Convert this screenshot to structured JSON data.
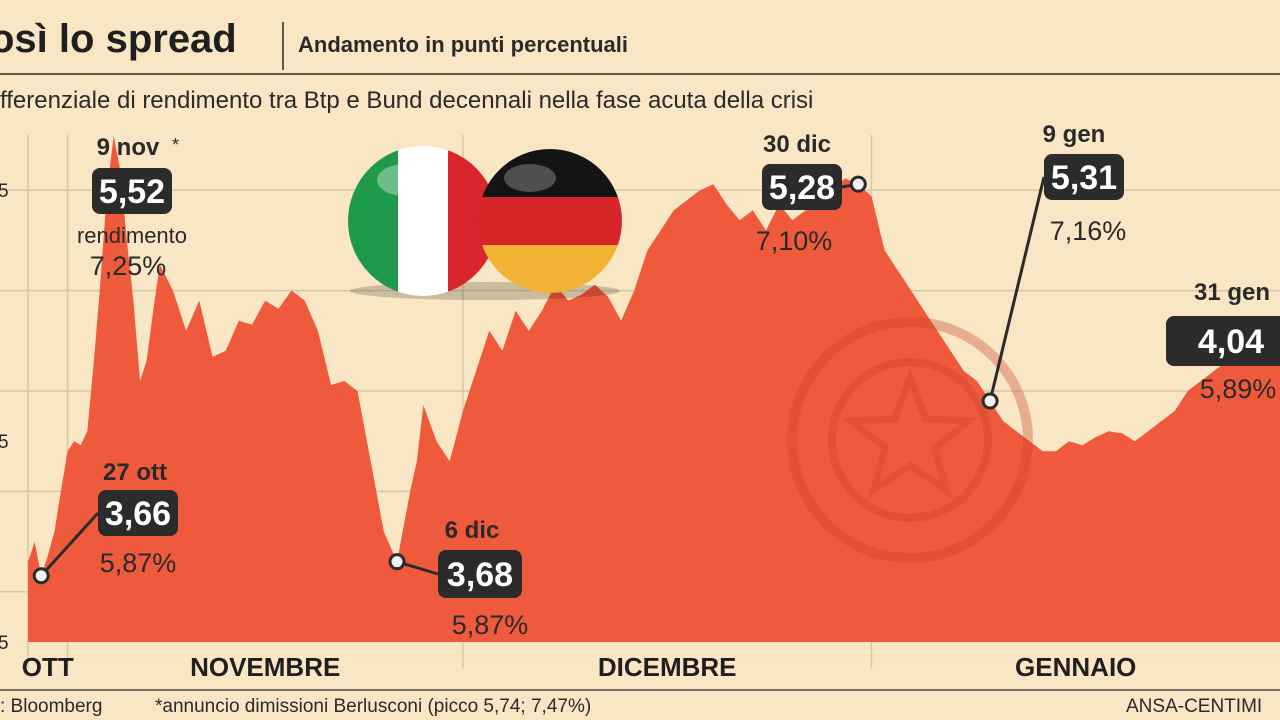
{
  "header": {
    "title": "osì lo spread",
    "subtitle": "Andamento in punti percentuali",
    "description": "fferenziale di rendimento tra Btp e Bund decennali nella fase acuta della crisi"
  },
  "footer": {
    "source": ": Bloomberg",
    "note": "*annuncio dimissioni Berlusconi (picco 5,74; 7,47%)",
    "credit": "ANSA-CENTIMI"
  },
  "colors": {
    "background": "#f8e6c4",
    "area": "#ef5a3c",
    "grid": "#d9c7a4",
    "callout": "#2b2b2b",
    "italy_green": "#1f9a4a",
    "italy_red": "#d8262c",
    "germany_black": "#141414",
    "germany_red": "#d7262a",
    "germany_gold": "#f2b233"
  },
  "chart_data": {
    "type": "area",
    "title": "osì lo spread",
    "ylabel": "",
    "ylim": [
      3.0,
      5.5
    ],
    "ytick_labels": [
      "5",
      "5",
      "5"
    ],
    "months": [
      {
        "label": "OTT",
        "day_start": 0,
        "day_end": 3
      },
      {
        "label": "NOVEMBRE",
        "day_start": 3,
        "day_end": 33
      },
      {
        "label": "DICEMBRE",
        "day_start": 33,
        "day_end": 64
      },
      {
        "label": "GENNAIO",
        "day_start": 64,
        "day_end": 95
      }
    ],
    "x": [
      0,
      0.5,
      1,
      1.5,
      2,
      2.5,
      3,
      3.5,
      4,
      4.5,
      5,
      5.5,
      6,
      6.5,
      7,
      7.5,
      8,
      8.5,
      9,
      9.5,
      10,
      11,
      12,
      13,
      14,
      15,
      16,
      17,
      18,
      19,
      20,
      21,
      22,
      23,
      24,
      25,
      26,
      27,
      28,
      29,
      29.5,
      30,
      31,
      32,
      33,
      34,
      35,
      36,
      37,
      38,
      39,
      40,
      41,
      42,
      43,
      44,
      45,
      46,
      47,
      48,
      49,
      50,
      51,
      52,
      53,
      54,
      55,
      56,
      57,
      58,
      59,
      60,
      61,
      62,
      63,
      64,
      65,
      66,
      67,
      68,
      69,
      70,
      71,
      72,
      73,
      74,
      75,
      76,
      77,
      78,
      79,
      80,
      81,
      82,
      83,
      84,
      85,
      86,
      87,
      88,
      89,
      90,
      91,
      92,
      93,
      94,
      95
    ],
    "y": [
      3.4,
      3.5,
      3.33,
      3.43,
      3.55,
      3.75,
      3.95,
      4.0,
      3.98,
      4.05,
      4.4,
      4.8,
      5.25,
      5.52,
      5.35,
      5.0,
      4.7,
      4.3,
      4.4,
      4.65,
      4.88,
      4.75,
      4.55,
      4.7,
      4.42,
      4.45,
      4.6,
      4.58,
      4.7,
      4.66,
      4.75,
      4.7,
      4.55,
      4.28,
      4.3,
      4.25,
      3.9,
      3.55,
      3.4,
      3.75,
      3.9,
      4.18,
      4.0,
      3.9,
      4.15,
      4.35,
      4.55,
      4.45,
      4.65,
      4.55,
      4.65,
      4.78,
      4.7,
      4.73,
      4.78,
      4.72,
      4.6,
      4.75,
      4.95,
      5.05,
      5.15,
      5.2,
      5.25,
      5.28,
      5.18,
      5.1,
      5.15,
      5.05,
      5.18,
      5.1,
      5.15,
      5.28,
      5.25,
      5.31,
      5.28,
      5.22,
      4.95,
      4.85,
      4.75,
      4.65,
      4.55,
      4.45,
      4.35,
      4.3,
      4.2,
      4.1,
      4.05,
      4.0,
      3.95,
      3.95,
      4.0,
      3.98,
      4.02,
      4.05,
      4.04,
      4.0,
      4.05,
      4.1,
      4.15,
      4.25,
      4.3,
      4.35,
      4.4,
      4.45,
      4.5,
      4.55,
      4.6
    ],
    "annotations": [
      {
        "date": "27 ott",
        "value": "3,66",
        "yield": "5,87%"
      },
      {
        "date": "9 nov",
        "asterisk": "*",
        "value": "5,52",
        "yield_label": "rendimento",
        "yield": "7,25%"
      },
      {
        "date": "6 dic",
        "value": "3,68",
        "yield": "5,87%"
      },
      {
        "date": "30 dic",
        "value": "5,28",
        "yield": "7,10%"
      },
      {
        "date": "9 gen",
        "value": "5,31",
        "yield": "7,16%"
      },
      {
        "date": "31 gen",
        "value": "4,04",
        "yield": "5,89%"
      }
    ]
  }
}
